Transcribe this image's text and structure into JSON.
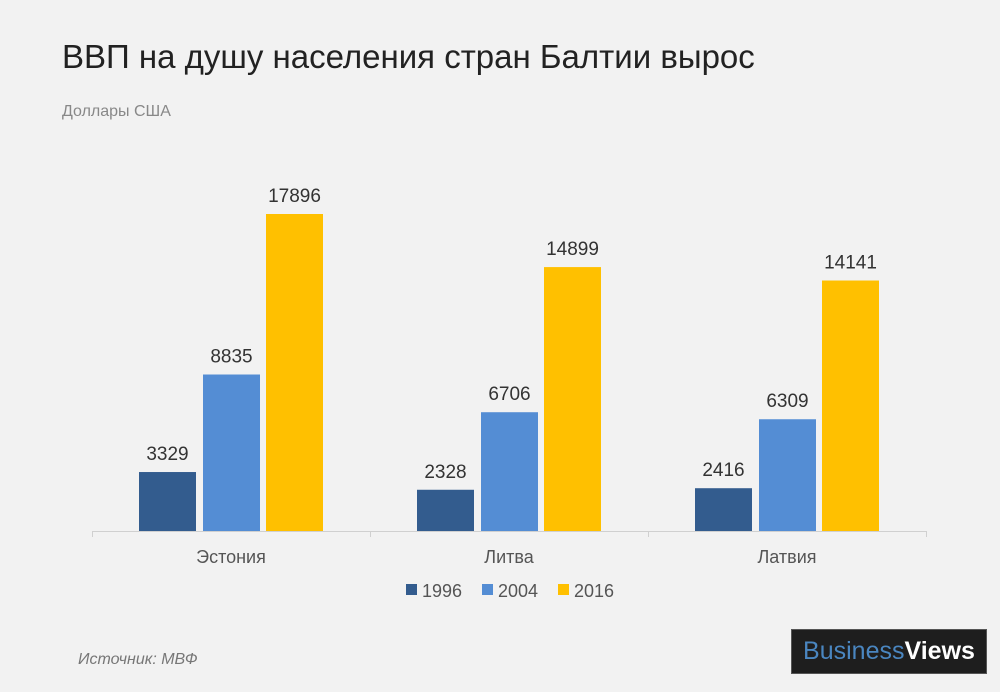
{
  "chart_data": {
    "type": "bar",
    "title": "ВВП на душу населения стран Балтии вырос",
    "subtitle": "Доллары США",
    "categories": [
      "Эстония",
      "Литва",
      "Латвия"
    ],
    "series": [
      {
        "name": "1996",
        "color": "#335c8e",
        "values": [
          3329,
          2328,
          2416
        ]
      },
      {
        "name": "2004",
        "color": "#548dd4",
        "values": [
          8835,
          6706,
          6309
        ]
      },
      {
        "name": "2016",
        "color": "#ffc000",
        "values": [
          17896,
          14899,
          14141
        ]
      }
    ],
    "ylim": [
      0,
      20000
    ],
    "grid": false,
    "legend": "bottom"
  },
  "footer": {
    "source": "Источник: МВФ"
  },
  "logo": {
    "part1": "Business",
    "part2": "Views"
  }
}
